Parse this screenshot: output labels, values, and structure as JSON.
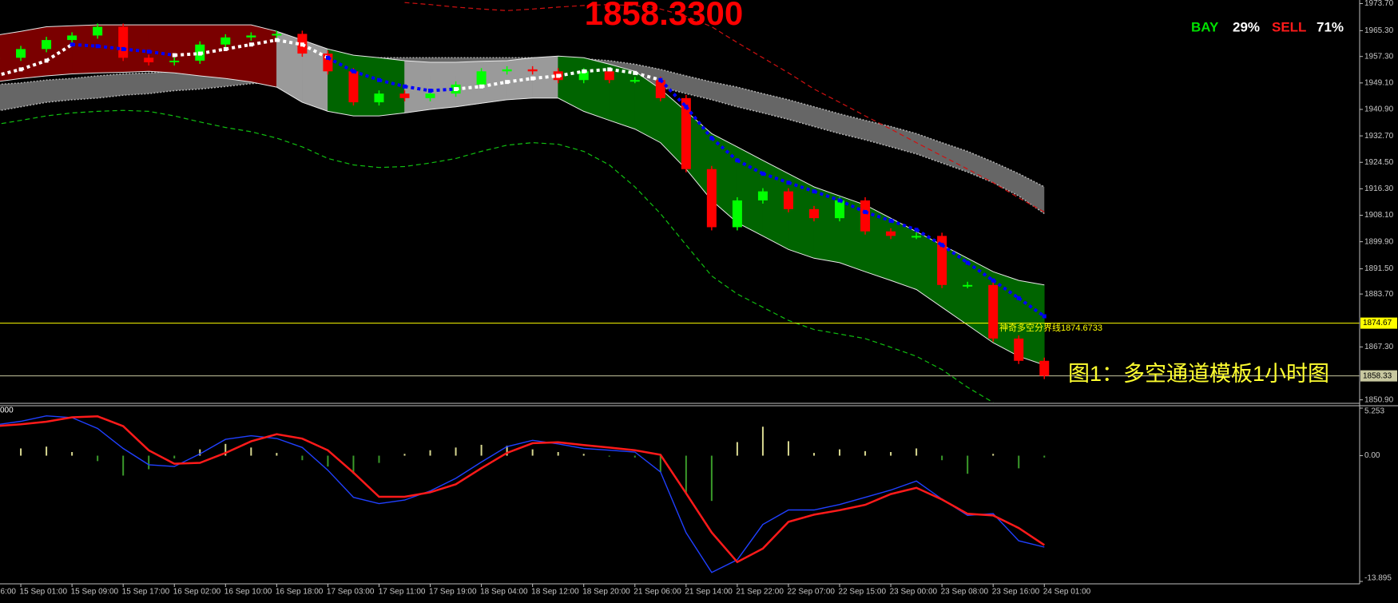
{
  "chart_data": [
    {
      "type": "candlestick",
      "price_text": "1858.3300",
      "signal": {
        "buy_label": "BAY",
        "buy_pct": "29%",
        "sell_label": "SELL",
        "sell_pct": "71%"
      },
      "caption": "图1：多空通道模板1小时图",
      "hline_note": "神奇多空分界线1874.6733",
      "categories": [
        "6:00",
        null,
        "15 Sep 01:00",
        null,
        "15 Sep 09:00",
        null,
        "15 Sep 17:00",
        null,
        "16 Sep 02:00",
        null,
        "16 Sep 10:00",
        null,
        "16 Sep 18:00",
        null,
        "17 Sep 03:00",
        null,
        "17 Sep 11:00",
        null,
        "17 Sep 19:00",
        null,
        "18 Sep 04:00",
        null,
        "18 Sep 12:00",
        null,
        "18 Sep 20:00",
        null,
        "21 Sep 06:00",
        null,
        "21 Sep 14:00",
        null,
        "21 Sep 22:00",
        null,
        "22 Sep 07:00",
        null,
        "22 Sep 15:00",
        null,
        "23 Sep 00:00",
        null,
        "23 Sep 08:00",
        null,
        "23 Sep 16:00",
        null,
        "24 Sep 01:00"
      ],
      "close": [
        null,
        1956.9,
        1959.6,
        1962.4,
        1963.8,
        1966.5,
        1956.9,
        1955.5,
        1956.0,
        1961.0,
        1963.2,
        1963.8,
        1964.3,
        1958.2,
        1952.7,
        1943.1,
        1945.8,
        1944.4,
        1945.8,
        1948.6,
        1952.7,
        1953.3,
        1952.7,
        1950.0,
        1952.7,
        1950.0,
        1950.0,
        1944.4,
        1922.4,
        1904.4,
        1912.7,
        1915.5,
        1910.0,
        1907.2,
        1912.7,
        1903.1,
        1901.7,
        1901.7,
        1886.5,
        1886.5,
        1869.9,
        1863.0,
        1858.33
      ],
      "up_color": "#00ff00",
      "down_color": "#ff0000",
      "band": {
        "upper": [
          1962.4,
          1963.8,
          1965.1,
          1966.5,
          1966.8,
          1967.1,
          1967.1,
          1967.1,
          1967.1,
          1967.1,
          1967.1,
          1967.1,
          1965.1,
          1962.4,
          1959.6,
          1957.7,
          1956.9,
          1956.0,
          1955.5,
          1955.5,
          1955.8,
          1956.0,
          1956.9,
          1957.4,
          1956.9,
          1954.9,
          1952.7,
          1947.2,
          1940.3,
          1933.4,
          1929.3,
          1925.1,
          1921.0,
          1916.9,
          1914.1,
          1911.3,
          1907.2,
          1903.0,
          1898.9,
          1894.8,
          1890.6,
          1887.9,
          1886.5
        ],
        "lower": [
          1948.6,
          1949.4,
          1950.5,
          1951.3,
          1951.9,
          1952.2,
          1952.4,
          1952.7,
          1952.2,
          1951.3,
          1950.5,
          1949.4,
          1947.8,
          1943.1,
          1940.3,
          1938.9,
          1938.9,
          1939.8,
          1940.9,
          1941.7,
          1942.8,
          1943.9,
          1944.4,
          1944.4,
          1940.3,
          1937.5,
          1934.8,
          1930.6,
          1922.4,
          1912.7,
          1905.8,
          1901.7,
          1897.5,
          1894.8,
          1893.4,
          1890.6,
          1887.9,
          1885.1,
          1879.6,
          1874.1,
          1868.6,
          1864.4,
          1861.7
        ],
        "colors": [
          "#7a0000",
          "#7a0000",
          "#7a0000",
          "#7a0000",
          "#7a0000",
          "#7a0000",
          "#7a0000",
          "#7a0000",
          "#7a0000",
          "#7a0000",
          "#7a0000",
          "#7a0000",
          "#9a9a9a",
          "#9a9a9a",
          "#006400",
          "#006400",
          "#006400",
          "#9a9a9a",
          "#9a9a9a",
          "#9a9a9a",
          "#9a9a9a",
          "#9a9a9a",
          "#9a9a9a",
          "#006400",
          "#006400",
          "#006400",
          "#006400",
          "#006400",
          "#006400",
          "#006400",
          "#006400",
          "#006400",
          "#006400",
          "#006400",
          "#006400",
          "#006400",
          "#006400",
          "#006400",
          "#006400",
          "#006400",
          "#006400",
          "#006400",
          "#006400"
        ]
      },
      "outer_band": {
        "color": "#666666",
        "upper": [
          1947.8,
          1948.6,
          1949.1,
          1950.0,
          1950.5,
          1951.3,
          1951.9,
          1952.2,
          1952.7,
          1953.3,
          1954.1,
          1954.9,
          1955.5,
          1956.0,
          1956.3,
          1956.9,
          1956.9,
          1956.9,
          1956.9,
          1956.9,
          1956.9,
          1956.9,
          1956.9,
          1956.9,
          1956.6,
          1956.0,
          1954.9,
          1953.3,
          1951.3,
          1949.4,
          1947.8,
          1945.8,
          1943.9,
          1941.7,
          1939.5,
          1937.5,
          1935.6,
          1933.4,
          1930.6,
          1927.9,
          1924.6,
          1921.0,
          1916.9
        ],
        "lower": [
          1939.5,
          1940.3,
          1941.7,
          1943.1,
          1943.9,
          1944.4,
          1945.3,
          1945.8,
          1946.7,
          1947.2,
          1948.0,
          1948.9,
          1949.4,
          1950.0,
          1950.5,
          1951.3,
          1951.3,
          1951.3,
          1951.3,
          1951.3,
          1951.3,
          1951.3,
          1951.3,
          1951.3,
          1951.6,
          1951.1,
          1950.0,
          1947.8,
          1945.8,
          1943.9,
          1941.7,
          1939.8,
          1937.8,
          1935.6,
          1933.4,
          1931.5,
          1929.3,
          1927.1,
          1924.3,
          1921.5,
          1918.2,
          1914.1,
          1908.6
        ]
      },
      "dashed": [
        {
          "color": "#d01010",
          "values": [
            null,
            null,
            null,
            null,
            null,
            null,
            null,
            null,
            null,
            null,
            null,
            null,
            null,
            null,
            null,
            null,
            null,
            1974.0,
            1973.4,
            1972.6,
            1972.0,
            1971.5,
            1972.0,
            1972.6,
            1973.1,
            1973.4,
            1973.1,
            1972.0,
            1969.8,
            1966.5,
            1961.6,
            1956.9,
            1952.2,
            1947.2,
            1943.1,
            1938.9,
            1934.8,
            1930.6,
            1926.5,
            1922.4,
            1918.2,
            1913.5,
            1909.1
          ]
        },
        {
          "color": "#10c010",
          "values": [
            1935.6,
            1936.2,
            1937.5,
            1938.9,
            1939.8,
            1940.3,
            1940.6,
            1940.3,
            1938.9,
            1937.0,
            1935.3,
            1934.0,
            1932.0,
            1929.3,
            1925.7,
            1923.7,
            1922.9,
            1923.2,
            1924.3,
            1925.7,
            1927.9,
            1929.8,
            1930.6,
            1930.1,
            1927.9,
            1923.7,
            1916.9,
            1908.6,
            1898.9,
            1889.3,
            1883.7,
            1879.6,
            1875.5,
            1872.7,
            1871.3,
            1869.9,
            1867.2,
            1864.4,
            1860.3,
            1854.8,
            1850.1,
            null,
            null
          ]
        }
      ],
      "ma": {
        "values": [
          1950.5,
          1951.3,
          1953.3,
          1956.0,
          1961.0,
          1960.5,
          1959.6,
          1958.8,
          1957.7,
          1958.2,
          1959.6,
          1961.0,
          1962.4,
          1961.0,
          1956.9,
          1952.7,
          1950.0,
          1948.0,
          1946.7,
          1947.2,
          1948.0,
          1949.4,
          1950.5,
          1951.3,
          1952.7,
          1953.3,
          1952.2,
          1950.0,
          1941.7,
          1932.0,
          1925.1,
          1921.0,
          1918.2,
          1915.5,
          1912.7,
          1909.1,
          1906.4,
          1903.6,
          1898.9,
          1893.4,
          1887.9,
          1882.4,
          1876.8
        ],
        "colors": [
          "#ffffff",
          "#ffffff",
          "#ffffff",
          "#ffffff",
          "#0000ff",
          "#0000ff",
          "#0000ff",
          "#0000ff",
          "#ffffff",
          "#ffffff",
          "#ffffff",
          "#ffffff",
          "#ffffff",
          "#ffffff",
          "#0000ff",
          "#0000ff",
          "#0000ff",
          "#0000ff",
          "#0000ff",
          "#ffffff",
          "#ffffff",
          "#ffffff",
          "#ffffff",
          "#ffffff",
          "#ffffff",
          "#ffffff",
          "#ffffff",
          "#0000ff",
          "#0000ff",
          "#0000ff",
          "#0000ff",
          "#0000ff",
          "#0000ff",
          "#0000ff",
          "#0000ff",
          "#0000ff",
          "#0000ff",
          "#0000ff",
          "#0000ff",
          "#0000ff",
          "#0000ff",
          "#0000ff",
          "#0000ff"
        ]
      },
      "hlines": [
        {
          "value": 1874.67,
          "color": "#ffff00"
        },
        {
          "value": 1858.33,
          "color": "#c8c8a0"
        }
      ],
      "ylim": [
        1850.07,
        1974.8
      ],
      "yticks": [
        {
          "value": 1973.7,
          "label": "1973.70"
        },
        {
          "value": 1965.3,
          "label": "1965.30"
        },
        {
          "value": 1957.3,
          "label": "1957.30"
        },
        {
          "value": 1949.1,
          "label": "1949.10"
        },
        {
          "value": 1940.9,
          "label": "1940.90"
        },
        {
          "value": 1932.7,
          "label": "1932.70"
        },
        {
          "value": 1924.5,
          "label": "1924.50"
        },
        {
          "value": 1916.3,
          "label": "1916.30"
        },
        {
          "value": 1908.1,
          "label": "1908.10"
        },
        {
          "value": 1899.9,
          "label": "1899.90"
        },
        {
          "value": 1891.5,
          "label": "1891.50"
        },
        {
          "value": 1883.7,
          "label": "1883.70"
        },
        {
          "value": 1867.3,
          "label": "1867.30"
        },
        {
          "value": 1850.9,
          "label": "1850.90"
        }
      ]
    },
    {
      "type": "macd",
      "label": "000",
      "series": [
        {
          "color": "#2040ff",
          "values": [
            3.5,
            3.4,
            3.8,
            4.4,
            4.2,
            3.0,
            0.8,
            -1.0,
            -1.2,
            0.2,
            1.8,
            2.2,
            1.9,
            0.9,
            -1.6,
            -4.6,
            -5.3,
            -4.9,
            -3.9,
            -2.5,
            -0.7,
            1.0,
            1.7,
            1.3,
            0.8,
            0.6,
            0.4,
            -1.8,
            -8.5,
            -12.9,
            -11.5,
            -7.6,
            -6.0,
            -6.0,
            -5.4,
            -4.6,
            -3.8,
            -2.8,
            -4.8,
            -6.6,
            -6.4,
            -9.4,
            -10.1
          ]
        },
        {
          "color": "#ff1a1a",
          "values": [
            3.26,
            3.26,
            3.46,
            3.75,
            4.24,
            4.34,
            3.26,
            0.59,
            -0.89,
            -0.79,
            0.3,
            1.58,
            2.37,
            1.88,
            0.59,
            -1.88,
            -4.54,
            -4.54,
            -4.05,
            -3.16,
            -1.38,
            0.3,
            1.38,
            1.48,
            1.18,
            0.89,
            0.59,
            0.1,
            -4.15,
            -8.49,
            -11.75,
            -10.27,
            -7.31,
            -6.52,
            -6.02,
            -5.43,
            -4.24,
            -3.55,
            -4.84,
            -6.42,
            -6.61,
            -7.99,
            -9.87
          ]
        }
      ],
      "histogram": {
        "color": "#d8d890",
        "negative_color": "#3a9a2a",
        "values": [
          0.3,
          0.5,
          0.8,
          1.0,
          0.4,
          -0.6,
          -2.2,
          -1.5,
          -0.3,
          0.7,
          1.3,
          0.9,
          0.3,
          -0.5,
          -1.2,
          -2.0,
          -0.8,
          0.2,
          0.6,
          0.9,
          1.2,
          1.1,
          0.7,
          0.4,
          0.2,
          -0.1,
          -0.2,
          -1.8,
          -4.2,
          -5.0,
          1.5,
          3.2,
          1.6,
          0.3,
          0.7,
          0.5,
          0.4,
          0.8,
          -0.5,
          -2.0,
          0.2,
          -1.4,
          -0.2
        ]
      },
      "ylim": [
        -13.895,
        5.253
      ],
      "yticks": [
        5.253,
        {
          "value": 0,
          "label": "0.00"
        },
        -13.895
      ]
    }
  ]
}
